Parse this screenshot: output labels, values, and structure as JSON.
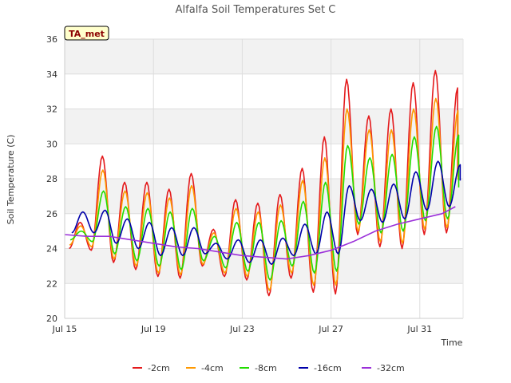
{
  "chart_data": {
    "type": "line",
    "title": "Alfalfa Soil Temperatures Set C",
    "xlabel": "Time",
    "ylabel": "Soil Temperature (C)",
    "ylim": [
      20,
      36
    ],
    "xlim": [
      0,
      18
    ],
    "grid": true,
    "legend_position": "bottom",
    "badge": "TA_met",
    "y_ticks": [
      "20",
      "22",
      "24",
      "26",
      "28",
      "30",
      "32",
      "34",
      "36"
    ],
    "x_ticks": [
      {
        "day": 0,
        "label": "Jul 15"
      },
      {
        "day": 4,
        "label": "Jul 19"
      },
      {
        "day": 8,
        "label": "Jul 23"
      },
      {
        "day": 12,
        "label": "Jul 27"
      },
      {
        "day": 16,
        "label": "Jul 31"
      }
    ],
    "days": [
      "Jul 15",
      "Jul 16",
      "Jul 17",
      "Jul 18",
      "Jul 19",
      "Jul 20",
      "Jul 21",
      "Jul 22",
      "Jul 23",
      "Jul 24",
      "Jul 25",
      "Jul 26",
      "Jul 27",
      "Jul 28",
      "Jul 29",
      "Jul 30",
      "Jul 31",
      "Aug 1"
    ],
    "series": [
      {
        "name": "-2cm",
        "color": "#e41a1c",
        "daily_max": [
          25.5,
          29.3,
          27.8,
          27.8,
          27.4,
          28.3,
          25.1,
          26.8,
          26.6,
          27.1,
          28.6,
          30.4,
          33.7,
          31.6,
          32.0,
          33.5,
          34.2,
          33.2
        ],
        "daily_min": [
          24.0,
          23.9,
          23.2,
          22.8,
          22.4,
          22.3,
          23.0,
          22.4,
          22.2,
          21.3,
          22.3,
          21.5,
          21.4,
          24.8,
          24.1,
          24.0,
          24.8,
          24.9
        ]
      },
      {
        "name": "-4cm",
        "color": "#ff9900",
        "daily_max": [
          25.3,
          28.5,
          27.3,
          27.2,
          26.9,
          27.6,
          24.9,
          26.3,
          26.1,
          26.5,
          27.9,
          29.2,
          32.0,
          30.8,
          30.8,
          32.0,
          32.6,
          31.9
        ],
        "daily_min": [
          24.2,
          24.1,
          23.4,
          23.0,
          22.6,
          22.5,
          23.1,
          22.6,
          22.4,
          21.6,
          22.6,
          21.9,
          21.9,
          25.0,
          24.4,
          24.3,
          25.1,
          25.2
        ]
      },
      {
        "name": "-8cm",
        "color": "#22dd00",
        "daily_max": [
          25.0,
          27.3,
          26.4,
          26.3,
          26.1,
          26.3,
          24.7,
          25.5,
          25.5,
          25.6,
          26.7,
          27.8,
          29.9,
          29.2,
          29.4,
          30.4,
          31.0,
          30.5
        ],
        "daily_min": [
          24.5,
          24.4,
          23.7,
          23.3,
          23.0,
          22.8,
          23.3,
          22.9,
          22.7,
          22.2,
          23.0,
          22.6,
          22.7,
          25.4,
          24.9,
          25.0,
          25.6,
          25.7
        ]
      },
      {
        "name": "-16cm",
        "color": "#0000aa",
        "daily_max": [
          26.1,
          26.2,
          25.7,
          25.5,
          25.2,
          25.2,
          24.3,
          24.5,
          24.5,
          24.6,
          25.4,
          26.1,
          27.6,
          27.4,
          27.7,
          28.4,
          29.0,
          28.8
        ],
        "daily_min": [
          24.9,
          24.9,
          24.3,
          24.0,
          23.6,
          23.6,
          23.7,
          23.4,
          23.2,
          23.1,
          23.6,
          23.7,
          23.7,
          25.6,
          25.5,
          25.7,
          26.2,
          26.4
        ]
      },
      {
        "name": "-32cm",
        "color": "#9b30d9",
        "x": [
          0,
          1,
          2,
          3,
          4,
          5,
          6,
          7,
          8,
          9,
          10,
          11,
          12,
          13,
          14,
          15,
          16,
          17,
          17.6
        ],
        "values": [
          24.8,
          24.7,
          24.7,
          24.5,
          24.3,
          24.1,
          24.0,
          23.8,
          23.6,
          23.5,
          23.4,
          23.6,
          23.9,
          24.4,
          25.0,
          25.4,
          25.7,
          26.0,
          26.4
        ]
      }
    ]
  }
}
